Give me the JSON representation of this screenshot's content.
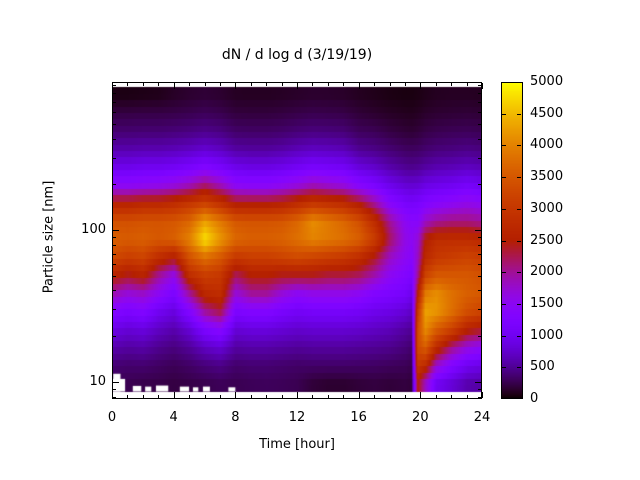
{
  "title": "dN / d log d (3/19/19)",
  "background_color": "#ffffff",
  "axes": {
    "x": {
      "label": "Time [hour]",
      "min": 0,
      "max": 24,
      "major_ticks": [
        0,
        4,
        8,
        12,
        16,
        20,
        24
      ],
      "minor_step_hours": 1
    },
    "y": {
      "label": "Particle size [nm]",
      "scale": "log",
      "min": 7.7,
      "max": 945,
      "major_ticks": [
        10,
        100
      ],
      "minor_ticks": [
        8,
        9,
        20,
        30,
        40,
        50,
        60,
        70,
        80,
        90,
        200,
        300,
        400,
        500,
        600,
        700,
        800,
        900
      ]
    },
    "colorbar": {
      "min": 0,
      "max": 5000,
      "tick_step": 500,
      "labels": [
        5000,
        4500,
        4000,
        3500,
        3000,
        2500,
        2000,
        1500,
        1000,
        500,
        0
      ],
      "palette_name": "gnuplot-pm3d black-violet-red-yellow",
      "palette_stops": [
        {
          "value": 0,
          "hex": "#000000"
        },
        {
          "value": 500,
          "hex": "#500096"
        },
        {
          "value": 1000,
          "hex": "#7202f2"
        },
        {
          "value": 1500,
          "hex": "#8b07f2"
        },
        {
          "value": 2000,
          "hex": "#a11096"
        },
        {
          "value": 2500,
          "hex": "#b42000"
        },
        {
          "value": 3000,
          "hex": "#c53700"
        },
        {
          "value": 3500,
          "hex": "#d55700"
        },
        {
          "value": 4000,
          "hex": "#e48300"
        },
        {
          "value": 4500,
          "hex": "#f1ba00"
        },
        {
          "value": 5000,
          "hex": "#ffff00"
        }
      ]
    }
  },
  "chart_data": {
    "type": "heatmap",
    "title": "dN / d log d (3/19/19)",
    "xlabel": "Time [hour]",
    "ylabel": "Particle size [nm]",
    "value_range": [
      0,
      5000
    ],
    "x_range_hours": [
      0,
      24
    ],
    "y_range_nm": [
      8.7,
      876
    ],
    "y_scale": "log",
    "grid": false,
    "legend_position": "right-colorbar",
    "x_hours": [
      0,
      1,
      2,
      3,
      4,
      5,
      6,
      7,
      8,
      9,
      10,
      11,
      12,
      13,
      14,
      15,
      16,
      17,
      18,
      19,
      19.4,
      19.8,
      20.3,
      21,
      22,
      23,
      24
    ],
    "y_sizes_nm": [
      10,
      13,
      17,
      22.5,
      29.5,
      39,
      51,
      67,
      88,
      115,
      151,
      198,
      260,
      342,
      448,
      589,
      772
    ],
    "values": [
      [
        250,
        260,
        240,
        230,
        210,
        230,
        250,
        280,
        260,
        280,
        290,
        280,
        260,
        180,
        150,
        150,
        180,
        200,
        180,
        200,
        180,
        2500,
        1800,
        1000,
        800,
        600,
        550
      ],
      [
        380,
        350,
        360,
        320,
        280,
        330,
        400,
        450,
        350,
        370,
        370,
        350,
        330,
        340,
        340,
        340,
        330,
        320,
        300,
        280,
        250,
        3000,
        2800,
        1800,
        1300,
        1000,
        900
      ],
      [
        600,
        550,
        580,
        480,
        420,
        520,
        700,
        800,
        550,
        580,
        580,
        550,
        520,
        540,
        540,
        540,
        520,
        500,
        470,
        400,
        350,
        3300,
        3600,
        2800,
        2100,
        1700,
        1500
      ],
      [
        900,
        800,
        850,
        700,
        600,
        800,
        1200,
        1400,
        800,
        850,
        850,
        800,
        750,
        780,
        780,
        780,
        750,
        700,
        650,
        550,
        500,
        3300,
        4100,
        3600,
        3200,
        2600,
        2400
      ],
      [
        1300,
        1200,
        1300,
        1000,
        850,
        1300,
        2000,
        2300,
        1200,
        1300,
        1300,
        1150,
        1050,
        1100,
        1100,
        1100,
        1050,
        950,
        900,
        800,
        700,
        3000,
        4300,
        4200,
        3800,
        3400,
        3200
      ],
      [
        1900,
        1700,
        1800,
        1500,
        1200,
        2000,
        2700,
        2800,
        1700,
        2000,
        2000,
        1700,
        1500,
        1600,
        1600,
        1600,
        1500,
        1300,
        1200,
        1100,
        950,
        2500,
        3900,
        4100,
        3800,
        3600,
        3500
      ],
      [
        2600,
        2400,
        2600,
        2000,
        1600,
        2800,
        3100,
        3000,
        2200,
        2500,
        2500,
        2400,
        2400,
        2400,
        2300,
        2300,
        2200,
        1900,
        1500,
        1300,
        1200,
        2000,
        3200,
        3500,
        3500,
        3500,
        3400
      ],
      [
        3300,
        3100,
        3200,
        2800,
        2500,
        3400,
        3800,
        3500,
        3000,
        3100,
        3100,
        3200,
        3300,
        3200,
        3100,
        3000,
        2800,
        2400,
        1800,
        1500,
        1400,
        1800,
        2700,
        3000,
        3100,
        3200,
        3100
      ],
      [
        3600,
        3550,
        3600,
        3500,
        3600,
        4000,
        4800,
        4200,
        3700,
        3600,
        3600,
        3650,
        3800,
        4000,
        3900,
        3800,
        3600,
        3100,
        2200,
        1600,
        1500,
        1700,
        2500,
        2800,
        2800,
        2800,
        2700
      ],
      [
        3400,
        3400,
        3450,
        3450,
        3500,
        3700,
        4300,
        3900,
        3500,
        3450,
        3450,
        3500,
        3700,
        4100,
        3900,
        3700,
        3400,
        2800,
        2000,
        1500,
        1400,
        1400,
        1800,
        2000,
        2100,
        2100,
        2000
      ],
      [
        2600,
        2600,
        2700,
        2700,
        2800,
        3000,
        3200,
        2900,
        2500,
        2500,
        2500,
        2600,
        2800,
        3000,
        2900,
        2800,
        2500,
        2000,
        1400,
        1150,
        1100,
        1150,
        1300,
        1400,
        1500,
        1600,
        1500
      ],
      [
        1500,
        1500,
        1550,
        1600,
        1700,
        1900,
        2200,
        1900,
        1500,
        1450,
        1450,
        1550,
        1700,
        1900,
        1800,
        1700,
        1400,
        1200,
        950,
        800,
        780,
        800,
        900,
        950,
        1000,
        1100,
        1000
      ],
      [
        950,
        950,
        1000,
        1000,
        1050,
        1150,
        1300,
        1150,
        950,
        900,
        900,
        950,
        1050,
        1150,
        1100,
        1050,
        850,
        750,
        600,
        500,
        480,
        500,
        560,
        620,
        650,
        700,
        650
      ],
      [
        600,
        600,
        620,
        620,
        650,
        700,
        780,
        700,
        560,
        540,
        540,
        580,
        650,
        700,
        680,
        650,
        500,
        450,
        380,
        320,
        310,
        320,
        360,
        400,
        420,
        450,
        420
      ],
      [
        370,
        370,
        380,
        380,
        400,
        430,
        470,
        430,
        340,
        330,
        330,
        350,
        390,
        420,
        410,
        390,
        300,
        280,
        220,
        180,
        170,
        190,
        230,
        260,
        280,
        290,
        270
      ],
      [
        220,
        220,
        230,
        230,
        240,
        260,
        290,
        260,
        200,
        195,
        195,
        210,
        235,
        255,
        245,
        235,
        180,
        150,
        120,
        100,
        95,
        110,
        140,
        160,
        170,
        180,
        170
      ],
      [
        60,
        60,
        70,
        80,
        120,
        150,
        170,
        150,
        110,
        105,
        105,
        115,
        130,
        145,
        140,
        130,
        100,
        80,
        60,
        50,
        50,
        60,
        80,
        100,
        110,
        110,
        100
      ]
    ],
    "missing_regions": [
      {
        "t0": 0.0,
        "t1": 0.85,
        "size_top_nm": 10.45
      },
      {
        "t0": 0.08,
        "t1": 0.55,
        "size_top_nm": 11.3
      },
      {
        "t0": 1.35,
        "t1": 1.9,
        "size_top_nm": 9.4
      },
      {
        "t0": 2.15,
        "t1": 2.55,
        "size_top_nm": 9.3
      },
      {
        "t0": 2.85,
        "t1": 3.65,
        "size_top_nm": 9.45
      },
      {
        "t0": 4.4,
        "t1": 5.0,
        "size_top_nm": 9.3
      },
      {
        "t0": 5.25,
        "t1": 5.6,
        "size_top_nm": 9.2
      },
      {
        "t0": 5.9,
        "t1": 6.35,
        "size_top_nm": 9.3
      },
      {
        "t0": 7.55,
        "t1": 8.0,
        "size_top_nm": 9.2
      }
    ]
  }
}
